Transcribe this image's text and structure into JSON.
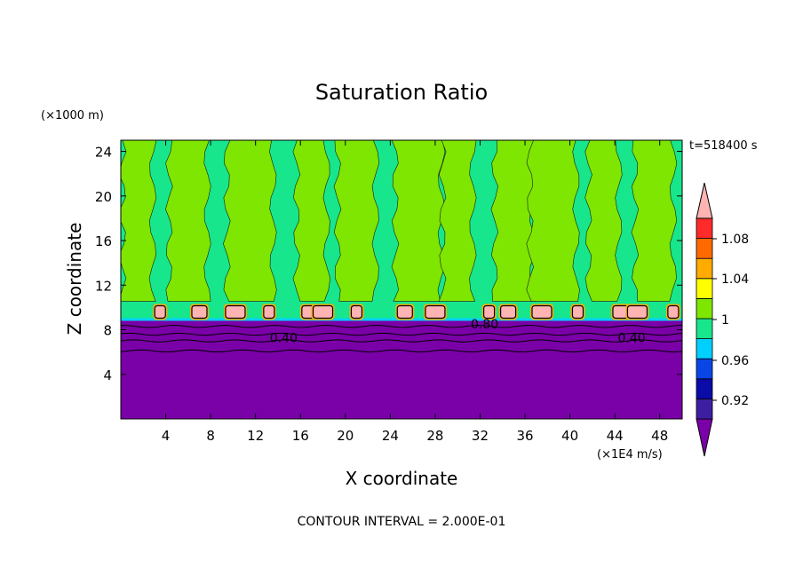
{
  "chart_data": {
    "type": "contour",
    "title": "Saturation Ratio",
    "xlabel": "X coordinate",
    "ylabel": "Z coordinate",
    "x_unit_label": "(×1E4 m/s)",
    "y_unit_label": "(×1000 m)",
    "time_label": "t=518400 s",
    "footer": "CONTOUR INTERVAL = 2.000E-01",
    "xlim": [
      0,
      50
    ],
    "ylim": [
      0,
      25
    ],
    "x_ticks": [
      "4",
      "8",
      "12",
      "16",
      "20",
      "24",
      "28",
      "32",
      "36",
      "40",
      "44",
      "48"
    ],
    "x_tick_values": [
      4,
      8,
      12,
      16,
      20,
      24,
      28,
      32,
      36,
      40,
      44,
      48
    ],
    "y_ticks": [
      "4",
      "8",
      "12",
      "16",
      "20",
      "24"
    ],
    "y_tick_values": [
      4,
      8,
      12,
      16,
      20,
      24
    ],
    "contour_labels": [
      {
        "text": "0.40",
        "x": 14.5,
        "z": 7.3
      },
      {
        "text": "0.80",
        "x": 32.4,
        "z": 8.5
      },
      {
        "text": "0.40",
        "x": 45.5,
        "z": 7.3
      }
    ],
    "colorbar": {
      "labels": [
        "1.08",
        "1.04",
        "1",
        "0.96",
        "0.92"
      ],
      "bins": [
        {
          "color": "#7a00a8"
        },
        {
          "color": "#3c1fa0"
        },
        {
          "color": "#0b0ba8"
        },
        {
          "color": "#0a46e6"
        },
        {
          "color": "#00cfff"
        },
        {
          "color": "#18e68c"
        },
        {
          "color": "#7ee600"
        },
        {
          "color": "#ffff00"
        },
        {
          "color": "#ffab00"
        },
        {
          "color": "#ff6a00"
        },
        {
          "color": "#ff2a2a"
        },
        {
          "color": "#ffb3b3"
        }
      ]
    },
    "regions": {
      "lower_color": "#7a00a8",
      "upper_color": "#18e68c",
      "column_color": "#7ee600",
      "blob_color": "#ffb3b3",
      "boundary_z": 8.8,
      "column_centers_x": [
        1.5,
        6.0,
        11.5,
        17.0,
        21.0,
        26.5,
        30.0,
        35.0,
        38.5,
        43.0,
        47.5
      ],
      "blob_centers_x": [
        3.5,
        7.0,
        10.2,
        13.2,
        16.8,
        18.0,
        21.0,
        25.3,
        28.0,
        32.8,
        34.5,
        37.5,
        40.7,
        44.5,
        46.0,
        49.2
      ]
    }
  }
}
